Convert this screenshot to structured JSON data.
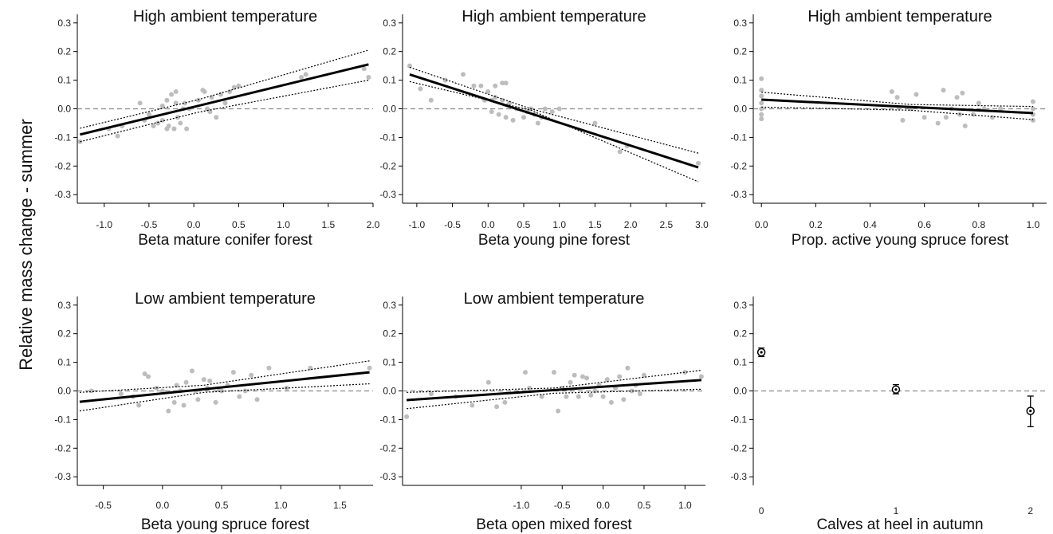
{
  "ylabel": "Relative mass change - summer",
  "colors": {
    "points": "#bdbdbd",
    "line": "#000000",
    "ci": "#000000",
    "zero": "#8a8a8a",
    "axis": "#000000"
  },
  "chart_data": [
    {
      "type": "scatter",
      "title": "High ambient temperature",
      "xlabel": "Beta mature conifer forest",
      "xlim": [
        -1.3,
        2.0
      ],
      "ylim": [
        -0.33,
        0.33
      ],
      "xticks": [
        -1.0,
        -0.5,
        0.0,
        0.5,
        1.0,
        1.5,
        2.0
      ],
      "xtick_labels": [
        "-1.0",
        "-0.5",
        "0.0",
        "0.5",
        "1.0",
        "1.5",
        "2.0"
      ],
      "yticks": [
        -0.3,
        -0.2,
        -0.1,
        0.0,
        0.1,
        0.2,
        0.3
      ],
      "ytick_labels": [
        "-0.3",
        "-0.2",
        "-0.1",
        "0.0",
        "0.1",
        "0.2",
        "0.3"
      ],
      "reference_line_y": 0,
      "points": {
        "x": [
          -1.27,
          -0.95,
          -0.85,
          -0.8,
          -0.6,
          -0.55,
          -0.5,
          -0.45,
          -0.4,
          -0.35,
          -0.35,
          -0.3,
          -0.3,
          -0.28,
          -0.25,
          -0.22,
          -0.2,
          -0.2,
          -0.18,
          -0.15,
          -0.12,
          -0.1,
          -0.08,
          -0.05,
          0.05,
          0.1,
          0.12,
          0.15,
          0.18,
          0.2,
          0.25,
          0.3,
          0.35,
          0.4,
          0.45,
          0.5,
          1.2,
          1.25,
          1.9,
          1.95
        ],
        "y": [
          -0.115,
          -0.07,
          -0.095,
          -0.06,
          0.02,
          -0.04,
          -0.02,
          -0.06,
          -0.05,
          0.01,
          -0.04,
          -0.07,
          0.03,
          -0.06,
          0.05,
          -0.07,
          0.06,
          0.02,
          -0.03,
          -0.05,
          0.0,
          0.02,
          -0.07,
          0.0,
          0.03,
          0.065,
          0.06,
          0.0,
          -0.01,
          0.04,
          -0.03,
          0.05,
          0.02,
          0.06,
          0.075,
          0.08,
          0.11,
          0.12,
          0.14,
          0.11
        ]
      },
      "fit": {
        "x": [
          -1.27,
          1.95
        ],
        "y": [
          -0.09,
          0.155
        ]
      },
      "ci_upper": {
        "x": [
          -1.27,
          0.05,
          1.95
        ],
        "y": [
          -0.068,
          0.032,
          0.205
        ]
      },
      "ci_lower": {
        "x": [
          -1.27,
          0.05,
          1.95
        ],
        "y": [
          -0.115,
          -0.012,
          0.1
        ]
      }
    },
    {
      "type": "scatter",
      "title": "High ambient temperature",
      "xlabel": "Beta young pine forest",
      "xlim": [
        -1.2,
        3.05
      ],
      "ylim": [
        -0.33,
        0.33
      ],
      "xticks": [
        -1.0,
        -0.5,
        0.0,
        0.5,
        1.0,
        1.5,
        2.0,
        2.5,
        3.0
      ],
      "xtick_labels": [
        "-1.0",
        "-0.5",
        "0.0",
        "0.5",
        "1.0",
        "1.5",
        "2.0",
        "2.5",
        "3.0"
      ],
      "yticks": [
        -0.3,
        -0.2,
        -0.1,
        0.0,
        0.1,
        0.2,
        0.3
      ],
      "ytick_labels": [
        "-0.3",
        "-0.2",
        "-0.1",
        "0.0",
        "0.1",
        "0.2",
        "0.3"
      ],
      "reference_line_y": 0,
      "points": {
        "x": [
          -1.1,
          -0.95,
          -0.8,
          -0.6,
          -0.35,
          -0.2,
          -0.1,
          -0.05,
          0.0,
          0.05,
          0.05,
          0.1,
          0.1,
          0.15,
          0.2,
          0.2,
          0.25,
          0.25,
          0.3,
          0.35,
          0.4,
          0.5,
          0.55,
          0.6,
          0.65,
          0.7,
          0.75,
          0.8,
          0.9,
          1.0,
          1.5,
          1.85,
          1.95,
          2.95
        ],
        "y": [
          0.15,
          0.07,
          0.03,
          0.1,
          0.12,
          0.08,
          0.08,
          0.03,
          0.06,
          0.03,
          -0.01,
          0.08,
          0.04,
          -0.02,
          0.09,
          0.03,
          0.09,
          -0.03,
          0.02,
          -0.04,
          0.0,
          -0.03,
          -0.01,
          0.0,
          -0.02,
          -0.05,
          -0.03,
          0.0,
          -0.01,
          0.0,
          -0.05,
          -0.15,
          -0.13,
          -0.19
        ]
      },
      "fit": {
        "x": [
          -1.1,
          2.95
        ],
        "y": [
          0.12,
          -0.205
        ]
      },
      "ci_upper": {
        "x": [
          -1.1,
          0.6,
          2.95
        ],
        "y": [
          0.145,
          0.0,
          -0.155
        ]
      },
      "ci_lower": {
        "x": [
          -1.1,
          0.6,
          2.95
        ],
        "y": [
          0.095,
          -0.005,
          -0.255
        ]
      }
    },
    {
      "type": "scatter",
      "title": "High ambient temperature",
      "xlabel": "Prop. active young spruce forest",
      "xlim": [
        -0.03,
        1.05
      ],
      "ylim": [
        -0.33,
        0.33
      ],
      "xticks": [
        0.0,
        0.2,
        0.4,
        0.6,
        0.8,
        1.0
      ],
      "xtick_labels": [
        "0.0",
        "0.2",
        "0.4",
        "0.6",
        "0.8",
        "1.0"
      ],
      "yticks": [
        -0.3,
        -0.2,
        -0.1,
        0.0,
        0.1,
        0.2,
        0.3
      ],
      "ytick_labels": [
        "-0.3",
        "-0.2",
        "-0.1",
        "0.0",
        "0.1",
        "0.2",
        "0.3"
      ],
      "reference_line_y": 0,
      "points": {
        "x": [
          0.0,
          0.0,
          0.0,
          0.0,
          0.0,
          0.0,
          0.0,
          0.48,
          0.5,
          0.52,
          0.55,
          0.57,
          0.6,
          0.65,
          0.67,
          0.68,
          0.7,
          0.72,
          0.73,
          0.74,
          0.75,
          0.78,
          0.8,
          0.82,
          0.85,
          0.88,
          1.0,
          1.0,
          1.0,
          1.0
        ],
        "y": [
          0.105,
          0.065,
          0.045,
          0.02,
          0.0,
          -0.02,
          -0.035,
          0.06,
          0.04,
          -0.04,
          0.0,
          0.05,
          -0.03,
          -0.05,
          0.065,
          -0.03,
          0.0,
          0.04,
          -0.02,
          0.055,
          -0.06,
          -0.02,
          0.02,
          0.0,
          -0.03,
          0.0,
          0.025,
          0.0,
          -0.02,
          -0.04
        ]
      },
      "fit": {
        "x": [
          0.0,
          1.0
        ],
        "y": [
          0.032,
          -0.015
        ]
      },
      "ci_upper": {
        "x": [
          0.0,
          0.55,
          1.0
        ],
        "y": [
          0.058,
          0.015,
          0.008
        ]
      },
      "ci_lower": {
        "x": [
          0.0,
          0.55,
          1.0
        ],
        "y": [
          0.006,
          -0.005,
          -0.038
        ]
      }
    },
    {
      "type": "scatter",
      "title": "Low ambient temperature",
      "xlabel": "Beta young spruce forest",
      "xlim": [
        -0.72,
        1.78
      ],
      "ylim": [
        -0.33,
        0.33
      ],
      "xticks": [
        -0.5,
        0.0,
        0.5,
        1.0,
        1.5
      ],
      "xtick_labels": [
        "-0.5",
        "0.0",
        "0.5",
        "1.0",
        "1.5"
      ],
      "yticks": [
        -0.3,
        -0.2,
        -0.1,
        0.0,
        0.1,
        0.2,
        0.3
      ],
      "ytick_labels": [
        "-0.3",
        "-0.2",
        "-0.1",
        "0.0",
        "0.1",
        "0.2",
        "0.3"
      ],
      "reference_line_y": 0,
      "points": {
        "x": [
          -0.6,
          -0.35,
          -0.25,
          -0.2,
          -0.15,
          -0.12,
          -0.05,
          0.0,
          0.05,
          0.1,
          0.12,
          0.15,
          0.18,
          0.2,
          0.25,
          0.28,
          0.3,
          0.35,
          0.38,
          0.4,
          0.45,
          0.48,
          0.5,
          0.55,
          0.6,
          0.65,
          0.7,
          0.75,
          0.8,
          0.9,
          1.05,
          1.25,
          1.75
        ],
        "y": [
          0.0,
          -0.01,
          -0.02,
          -0.05,
          0.06,
          0.05,
          0.01,
          0.0,
          -0.07,
          -0.04,
          0.02,
          0.0,
          -0.05,
          0.03,
          0.07,
          0.0,
          -0.03,
          0.04,
          0.01,
          0.035,
          -0.04,
          0.005,
          0.0,
          0.02,
          0.065,
          -0.02,
          0.0,
          0.055,
          -0.03,
          0.08,
          0.01,
          0.08,
          0.08
        ]
      },
      "fit": {
        "x": [
          -0.7,
          1.75
        ],
        "y": [
          -0.038,
          0.065
        ]
      },
      "ci_upper": {
        "x": [
          -0.7,
          0.35,
          1.75
        ],
        "y": [
          -0.005,
          0.02,
          0.105
        ]
      },
      "ci_lower": {
        "x": [
          -0.7,
          0.35,
          1.75
        ],
        "y": [
          -0.07,
          -0.005,
          0.025
        ]
      }
    },
    {
      "type": "scatter",
      "title": "Low ambient temperature",
      "xlabel": "Beta open mixed forest",
      "xlim": [
        -2.45,
        1.25
      ],
      "ylim": [
        -0.33,
        0.33
      ],
      "xticks": [
        -1.0,
        -0.5,
        0.0,
        0.5,
        1.0
      ],
      "xtick_labels": [
        "-1.0",
        "-0.5",
        "0.0",
        "0.5",
        "1.0"
      ],
      "yticks": [
        -0.3,
        -0.2,
        -0.1,
        0.0,
        0.1,
        0.2,
        0.3
      ],
      "ytick_labels": [
        "-0.3",
        "-0.2",
        "-0.1",
        "0.0",
        "0.1",
        "0.2",
        "0.3"
      ],
      "reference_line_y": 0,
      "points": {
        "x": [
          -2.4,
          -2.1,
          -1.8,
          -1.6,
          -1.4,
          -1.3,
          -1.2,
          -0.95,
          -0.9,
          -0.75,
          -0.6,
          -0.55,
          -0.5,
          -0.45,
          -0.4,
          -0.35,
          -0.3,
          -0.25,
          -0.2,
          -0.15,
          -0.1,
          -0.05,
          0.0,
          0.05,
          0.1,
          0.15,
          0.2,
          0.25,
          0.3,
          0.35,
          0.4,
          0.45,
          0.5,
          1.0,
          1.2
        ],
        "y": [
          -0.09,
          -0.01,
          -0.02,
          -0.05,
          0.03,
          -0.055,
          -0.04,
          0.065,
          0.01,
          -0.02,
          0.065,
          -0.07,
          0.01,
          -0.02,
          0.03,
          0.055,
          -0.02,
          0.05,
          0.045,
          -0.015,
          0.0,
          0.02,
          -0.02,
          0.04,
          -0.04,
          0.01,
          0.05,
          -0.03,
          0.08,
          0.0,
          0.02,
          -0.01,
          0.055,
          0.065,
          0.05
        ]
      },
      "fit": {
        "x": [
          -2.4,
          1.2
        ],
        "y": [
          -0.032,
          0.038
        ]
      },
      "ci_upper": {
        "x": [
          -2.4,
          -0.6,
          1.2
        ],
        "y": [
          -0.005,
          0.01,
          0.072
        ]
      },
      "ci_lower": {
        "x": [
          -2.4,
          -0.6,
          1.2
        ],
        "y": [
          -0.062,
          -0.008,
          0.006
        ]
      }
    },
    {
      "type": "scatter",
      "subtype": "point_errorbar",
      "title": "",
      "xlabel": "Calves at heel in autumn",
      "xlim": [
        -0.06,
        2.12
      ],
      "ylim": [
        -0.33,
        0.33
      ],
      "xticks": [
        0,
        1,
        2
      ],
      "xtick_labels": [
        "0",
        "1",
        "2"
      ],
      "yticks": [
        -0.3,
        -0.2,
        -0.1,
        0.0,
        0.1,
        0.2,
        0.3
      ],
      "ytick_labels": [
        "-0.3",
        "-0.2",
        "-0.1",
        "0.0",
        "0.1",
        "0.2",
        "0.3"
      ],
      "reference_line_y": 0,
      "categories": [
        "0",
        "1",
        "2"
      ],
      "estimates": [
        {
          "x": 0,
          "y": 0.135,
          "lower": 0.12,
          "upper": 0.15
        },
        {
          "x": 1,
          "y": 0.005,
          "lower": -0.01,
          "upper": 0.022
        },
        {
          "x": 2,
          "y": -0.07,
          "lower": -0.125,
          "upper": -0.018
        }
      ]
    }
  ]
}
